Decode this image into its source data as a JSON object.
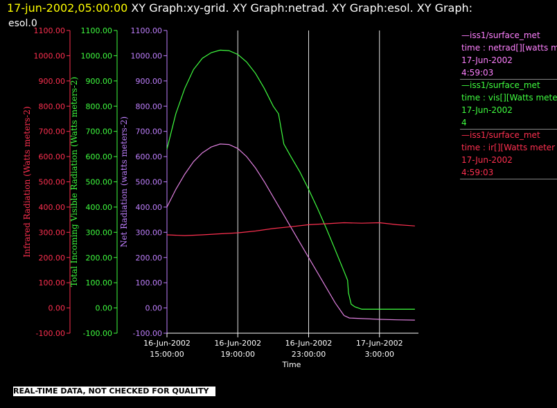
{
  "header": {
    "timestamp": "17-jun-2002,05:00:00",
    "title_line1": "XY Graph:xy-grid.  XY Graph:netrad.  XY Graph:esol.  XY Graph:",
    "title_line2": "esol.0"
  },
  "footer": {
    "note": "REAL-TIME DATA, NOT CHECKED FOR QUALITY"
  },
  "legend": [
    {
      "source": "iss1/surface_met",
      "variable": "time : netrad[][watts me",
      "date": "17-Jun-2002",
      "time": "4:59:03",
      "color": "#ff80ff"
    },
    {
      "source": "iss1/surface_met",
      "variable": "time : vis[][Watts meter",
      "date": "17-Jun-2002",
      "time": "4",
      "color": "#40ff40"
    },
    {
      "source": "iss1/surface_met",
      "variable": "time : ir[][Watts meter",
      "date": "17-Jun-2002",
      "time": "4:59:03",
      "color": "#ff3050"
    }
  ],
  "chart_data": {
    "type": "line",
    "xlabel": "Time",
    "x_ticks": [
      {
        "date": "16-Jun-2002",
        "time": "15:00:00",
        "hour": 0
      },
      {
        "date": "16-Jun-2002",
        "time": "19:00:00",
        "hour": 4
      },
      {
        "date": "16-Jun-2002",
        "time": "23:00:00",
        "hour": 8
      },
      {
        "date": "17-Jun-2002",
        "time": "3:00:00",
        "hour": 12
      }
    ],
    "xlim_hours": [
      0,
      14.2
    ],
    "vertical_grid_hours": [
      4,
      8,
      12
    ],
    "ylim": [
      -100,
      1100
    ],
    "y_ticks": [
      "1100.00",
      "1000.00",
      "900.00",
      "800.00",
      "700.00",
      "600.00",
      "500.00",
      "400.00",
      "300.00",
      "200.00",
      "100.00",
      "0.00",
      "-100.00"
    ],
    "y_tick_values": [
      1100,
      1000,
      900,
      800,
      700,
      600,
      500,
      400,
      300,
      200,
      100,
      0,
      -100
    ],
    "axes": [
      {
        "label": "Infrared Radiation (Watts meters-2)",
        "color": "#ff3050"
      },
      {
        "label": "Total Incoming Visible Radiation (Watts meters-2)",
        "color": "#40ff40"
      },
      {
        "label": "Net Radiation (watts meters-2)",
        "color": "#c080ff"
      }
    ],
    "series": [
      {
        "key": "vis",
        "color": "#40ff40",
        "points": [
          [
            0,
            630
          ],
          [
            0.5,
            770
          ],
          [
            1,
            870
          ],
          [
            1.5,
            945
          ],
          [
            2,
            990
          ],
          [
            2.5,
            1012
          ],
          [
            3,
            1022
          ],
          [
            3.5,
            1020
          ],
          [
            4,
            1005
          ],
          [
            4.5,
            975
          ],
          [
            5,
            930
          ],
          [
            5.5,
            870
          ],
          [
            6,
            800
          ],
          [
            6.3,
            770
          ],
          [
            6.6,
            650
          ],
          [
            7,
            600
          ],
          [
            7.5,
            540
          ],
          [
            8,
            470
          ],
          [
            8.5,
            395
          ],
          [
            9,
            315
          ],
          [
            9.5,
            230
          ],
          [
            10,
            145
          ],
          [
            10.2,
            110
          ],
          [
            10.25,
            60
          ],
          [
            10.4,
            15
          ],
          [
            10.6,
            5
          ],
          [
            11,
            -5
          ],
          [
            12,
            -5
          ],
          [
            13,
            -5
          ],
          [
            14,
            -5
          ]
        ]
      },
      {
        "key": "netrad",
        "color": "#e080e0",
        "points": [
          [
            0,
            400
          ],
          [
            0.5,
            470
          ],
          [
            1,
            530
          ],
          [
            1.5,
            580
          ],
          [
            2,
            615
          ],
          [
            2.5,
            638
          ],
          [
            3,
            650
          ],
          [
            3.5,
            648
          ],
          [
            4,
            632
          ],
          [
            4.5,
            600
          ],
          [
            5,
            555
          ],
          [
            5.5,
            500
          ],
          [
            6,
            440
          ],
          [
            6.5,
            380
          ],
          [
            7,
            320
          ],
          [
            7.5,
            260
          ],
          [
            8,
            200
          ],
          [
            8.5,
            140
          ],
          [
            9,
            80
          ],
          [
            9.5,
            20
          ],
          [
            10,
            -30
          ],
          [
            10.3,
            -40
          ],
          [
            11,
            -42
          ],
          [
            12,
            -45
          ],
          [
            13,
            -47
          ],
          [
            14,
            -48
          ]
        ]
      },
      {
        "key": "ir",
        "color": "#ff3050",
        "points": [
          [
            0,
            290
          ],
          [
            1,
            287
          ],
          [
            2,
            290
          ],
          [
            3,
            294
          ],
          [
            4,
            298
          ],
          [
            5,
            305
          ],
          [
            6,
            315
          ],
          [
            7,
            322
          ],
          [
            8,
            330
          ],
          [
            9,
            334
          ],
          [
            10,
            338
          ],
          [
            11,
            336
          ],
          [
            12,
            338
          ],
          [
            13,
            330
          ],
          [
            14,
            325
          ]
        ]
      }
    ]
  }
}
